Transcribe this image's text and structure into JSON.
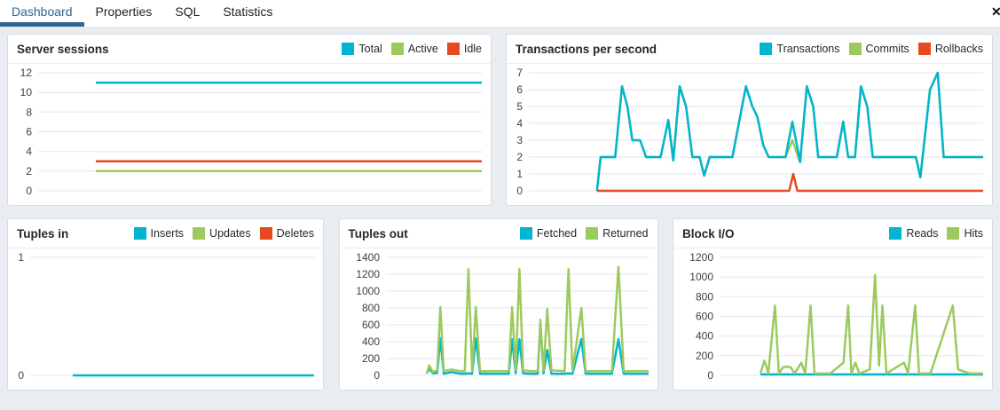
{
  "tabs": {
    "items": [
      {
        "label": "Dashboard",
        "active": true
      },
      {
        "label": "Properties",
        "active": false
      },
      {
        "label": "SQL",
        "active": false
      },
      {
        "label": "Statistics",
        "active": false
      }
    ],
    "close_icon": "✕"
  },
  "colors": {
    "accent_tab": "#326690",
    "series_cyan": "#00b5cf",
    "series_green": "#9cca5d",
    "series_red": "#e5491d",
    "gridline": "#e2e5ec",
    "panel_bg": "#ffffff",
    "page_bg": "#e9edf2"
  },
  "chart_data": [
    {
      "type": "line",
      "title": "Server sessions",
      "xlabel": "",
      "ylabel": "",
      "ylim": [
        0,
        12
      ],
      "ymax": 12,
      "yticks": [
        0,
        2,
        4,
        6,
        8,
        10,
        12
      ],
      "legend": [
        {
          "label": "Total",
          "color": "#00b5cf"
        },
        {
          "label": "Active",
          "color": "#9cca5d"
        },
        {
          "label": "Idle",
          "color": "#e5491d"
        }
      ],
      "series": [
        {
          "name": "Total",
          "color": "#00b5cf",
          "points": [
            [
              0.13,
              11
            ],
            [
              1,
              11
            ]
          ]
        },
        {
          "name": "Active",
          "color": "#9cca5d",
          "points": [
            [
              0.13,
              2
            ],
            [
              1,
              2
            ]
          ]
        },
        {
          "name": "Idle",
          "color": "#e5491d",
          "points": [
            [
              0.13,
              3
            ],
            [
              1,
              3
            ]
          ]
        }
      ]
    },
    {
      "type": "line",
      "title": "Transactions per second",
      "xlabel": "",
      "ylabel": "",
      "ylim": [
        0,
        7
      ],
      "ymax": 7,
      "yticks": [
        0,
        1,
        2,
        3,
        4,
        5,
        6,
        7
      ],
      "legend": [
        {
          "label": "Transactions",
          "color": "#00b5cf"
        },
        {
          "label": "Commits",
          "color": "#9cca5d"
        },
        {
          "label": "Rollbacks",
          "color": "#e5491d"
        }
      ],
      "series": [
        {
          "name": "Commits",
          "color": "#9cca5d",
          "points": [
            [
              0.15,
              0
            ],
            [
              0.158,
              2
            ],
            [
              0.19,
              2
            ],
            [
              0.205,
              6.2
            ],
            [
              0.217,
              5
            ],
            [
              0.228,
              3
            ],
            [
              0.245,
              3
            ],
            [
              0.258,
              2
            ],
            [
              0.29,
              2
            ],
            [
              0.307,
              4.2
            ],
            [
              0.318,
              1.8
            ],
            [
              0.332,
              6.2
            ],
            [
              0.346,
              5
            ],
            [
              0.36,
              2
            ],
            [
              0.376,
              2
            ],
            [
              0.386,
              0.9
            ],
            [
              0.398,
              2
            ],
            [
              0.448,
              2
            ],
            [
              0.478,
              6.2
            ],
            [
              0.492,
              5
            ],
            [
              0.503,
              4.4
            ],
            [
              0.516,
              2.7
            ],
            [
              0.528,
              2
            ],
            [
              0.565,
              2
            ],
            [
              0.58,
              3
            ],
            [
              0.597,
              1.7
            ],
            [
              0.612,
              6.2
            ],
            [
              0.626,
              5
            ],
            [
              0.637,
              2
            ],
            [
              0.678,
              2
            ],
            [
              0.692,
              4.1
            ],
            [
              0.703,
              2
            ],
            [
              0.718,
              2
            ],
            [
              0.731,
              6.2
            ],
            [
              0.745,
              5
            ],
            [
              0.757,
              2
            ],
            [
              0.852,
              2
            ],
            [
              0.862,
              0.8
            ],
            [
              0.883,
              6
            ],
            [
              0.9,
              7
            ],
            [
              0.913,
              2
            ],
            [
              1,
              2
            ]
          ]
        },
        {
          "name": "Transactions",
          "color": "#00b5cf",
          "points": [
            [
              0.15,
              0
            ],
            [
              0.158,
              2
            ],
            [
              0.19,
              2
            ],
            [
              0.205,
              6.2
            ],
            [
              0.217,
              5
            ],
            [
              0.228,
              3
            ],
            [
              0.245,
              3
            ],
            [
              0.258,
              2
            ],
            [
              0.29,
              2
            ],
            [
              0.307,
              4.2
            ],
            [
              0.318,
              1.8
            ],
            [
              0.332,
              6.2
            ],
            [
              0.346,
              5
            ],
            [
              0.36,
              2
            ],
            [
              0.376,
              2
            ],
            [
              0.386,
              0.9
            ],
            [
              0.398,
              2
            ],
            [
              0.448,
              2
            ],
            [
              0.478,
              6.2
            ],
            [
              0.492,
              5
            ],
            [
              0.503,
              4.4
            ],
            [
              0.516,
              2.7
            ],
            [
              0.528,
              2
            ],
            [
              0.565,
              2
            ],
            [
              0.58,
              4.1
            ],
            [
              0.597,
              1.7
            ],
            [
              0.612,
              6.2
            ],
            [
              0.626,
              5
            ],
            [
              0.637,
              2
            ],
            [
              0.678,
              2
            ],
            [
              0.692,
              4.1
            ],
            [
              0.703,
              2
            ],
            [
              0.718,
              2
            ],
            [
              0.731,
              6.2
            ],
            [
              0.745,
              5
            ],
            [
              0.757,
              2
            ],
            [
              0.852,
              2
            ],
            [
              0.862,
              0.8
            ],
            [
              0.883,
              6
            ],
            [
              0.9,
              7
            ],
            [
              0.913,
              2
            ],
            [
              1,
              2
            ]
          ]
        },
        {
          "name": "Rollbacks",
          "color": "#e5491d",
          "points": [
            [
              0.15,
              0
            ],
            [
              0.573,
              0
            ],
            [
              0.582,
              1
            ],
            [
              0.591,
              0
            ],
            [
              1,
              0
            ]
          ]
        }
      ]
    },
    {
      "type": "line",
      "title": "Tuples in",
      "xlabel": "",
      "ylabel": "",
      "ylim": [
        0,
        1
      ],
      "ymax": 1,
      "yticks": [
        0,
        1
      ],
      "legend": [
        {
          "label": "Inserts",
          "color": "#00b5cf"
        },
        {
          "label": "Updates",
          "color": "#9cca5d"
        },
        {
          "label": "Deletes",
          "color": "#e5491d"
        }
      ],
      "series": [
        {
          "name": "Inserts",
          "color": "#00b5cf",
          "points": [
            [
              0.15,
              0
            ],
            [
              1,
              0
            ]
          ]
        }
      ]
    },
    {
      "type": "line",
      "title": "Tuples out",
      "xlabel": "",
      "ylabel": "",
      "ylim": [
        0,
        1400
      ],
      "ymax": 1400,
      "yticks": [
        0,
        200,
        400,
        600,
        800,
        1000,
        1200,
        1400
      ],
      "legend": [
        {
          "label": "Fetched",
          "color": "#00b5cf"
        },
        {
          "label": "Returned",
          "color": "#9cca5d"
        }
      ],
      "series": [
        {
          "name": "Fetched",
          "color": "#00b5cf",
          "points": [
            [
              0.155,
              20
            ],
            [
              0.165,
              80
            ],
            [
              0.178,
              25
            ],
            [
              0.195,
              30
            ],
            [
              0.207,
              440
            ],
            [
              0.22,
              20
            ],
            [
              0.235,
              30
            ],
            [
              0.25,
              40
            ],
            [
              0.265,
              30
            ],
            [
              0.285,
              20
            ],
            [
              0.3,
              20
            ],
            [
              0.314,
              25
            ],
            [
              0.328,
              20
            ],
            [
              0.342,
              440
            ],
            [
              0.358,
              20
            ],
            [
              0.43,
              20
            ],
            [
              0.468,
              20
            ],
            [
              0.48,
              430
            ],
            [
              0.494,
              25
            ],
            [
              0.508,
              430
            ],
            [
              0.522,
              25
            ],
            [
              0.55,
              20
            ],
            [
              0.578,
              20
            ],
            [
              0.588,
              620
            ],
            [
              0.6,
              25
            ],
            [
              0.614,
              300
            ],
            [
              0.63,
              20
            ],
            [
              0.68,
              20
            ],
            [
              0.695,
              25
            ],
            [
              0.71,
              20
            ],
            [
              0.744,
              430
            ],
            [
              0.76,
              20
            ],
            [
              0.86,
              20
            ],
            [
              0.885,
              430
            ],
            [
              0.905,
              20
            ],
            [
              0.95,
              20
            ],
            [
              1,
              20
            ]
          ]
        },
        {
          "name": "Returned",
          "color": "#9cca5d",
          "points": [
            [
              0.155,
              20
            ],
            [
              0.165,
              120
            ],
            [
              0.178,
              40
            ],
            [
              0.195,
              60
            ],
            [
              0.207,
              810
            ],
            [
              0.22,
              50
            ],
            [
              0.235,
              60
            ],
            [
              0.25,
              70
            ],
            [
              0.265,
              60
            ],
            [
              0.285,
              50
            ],
            [
              0.3,
              50
            ],
            [
              0.314,
              1260
            ],
            [
              0.328,
              50
            ],
            [
              0.342,
              810
            ],
            [
              0.358,
              50
            ],
            [
              0.43,
              50
            ],
            [
              0.468,
              50
            ],
            [
              0.48,
              810
            ],
            [
              0.494,
              60
            ],
            [
              0.508,
              1260
            ],
            [
              0.522,
              60
            ],
            [
              0.55,
              50
            ],
            [
              0.578,
              50
            ],
            [
              0.588,
              660
            ],
            [
              0.6,
              60
            ],
            [
              0.614,
              790
            ],
            [
              0.63,
              60
            ],
            [
              0.68,
              50
            ],
            [
              0.695,
              1260
            ],
            [
              0.71,
              50
            ],
            [
              0.744,
              800
            ],
            [
              0.76,
              50
            ],
            [
              0.86,
              50
            ],
            [
              0.885,
              1290
            ],
            [
              0.905,
              50
            ],
            [
              0.95,
              50
            ],
            [
              1,
              50
            ]
          ]
        }
      ]
    },
    {
      "type": "line",
      "title": "Block I/O",
      "xlabel": "",
      "ylabel": "",
      "ylim": [
        0,
        1200
      ],
      "ymax": 1200,
      "yticks": [
        0,
        200,
        400,
        600,
        800,
        1000,
        1200
      ],
      "legend": [
        {
          "label": "Reads",
          "color": "#00b5cf"
        },
        {
          "label": "Hits",
          "color": "#9cca5d"
        }
      ],
      "series": [
        {
          "name": "Reads",
          "color": "#00b5cf",
          "points": [
            [
              0.155,
              10
            ],
            [
              1,
              10
            ]
          ]
        },
        {
          "name": "Hits",
          "color": "#9cca5d",
          "points": [
            [
              0.155,
              20
            ],
            [
              0.17,
              150
            ],
            [
              0.185,
              20
            ],
            [
              0.21,
              710
            ],
            [
              0.225,
              20
            ],
            [
              0.24,
              80
            ],
            [
              0.255,
              90
            ],
            [
              0.27,
              80
            ],
            [
              0.285,
              20
            ],
            [
              0.31,
              130
            ],
            [
              0.325,
              20
            ],
            [
              0.345,
              710
            ],
            [
              0.36,
              20
            ],
            [
              0.42,
              20
            ],
            [
              0.47,
              130
            ],
            [
              0.488,
              710
            ],
            [
              0.5,
              20
            ],
            [
              0.515,
              130
            ],
            [
              0.53,
              20
            ],
            [
              0.57,
              60
            ],
            [
              0.59,
              1020
            ],
            [
              0.605,
              100
            ],
            [
              0.618,
              710
            ],
            [
              0.633,
              20
            ],
            [
              0.7,
              130
            ],
            [
              0.715,
              20
            ],
            [
              0.742,
              710
            ],
            [
              0.757,
              20
            ],
            [
              0.8,
              20
            ],
            [
              0.885,
              710
            ],
            [
              0.905,
              60
            ],
            [
              0.95,
              20
            ],
            [
              1,
              20
            ]
          ]
        }
      ]
    }
  ]
}
